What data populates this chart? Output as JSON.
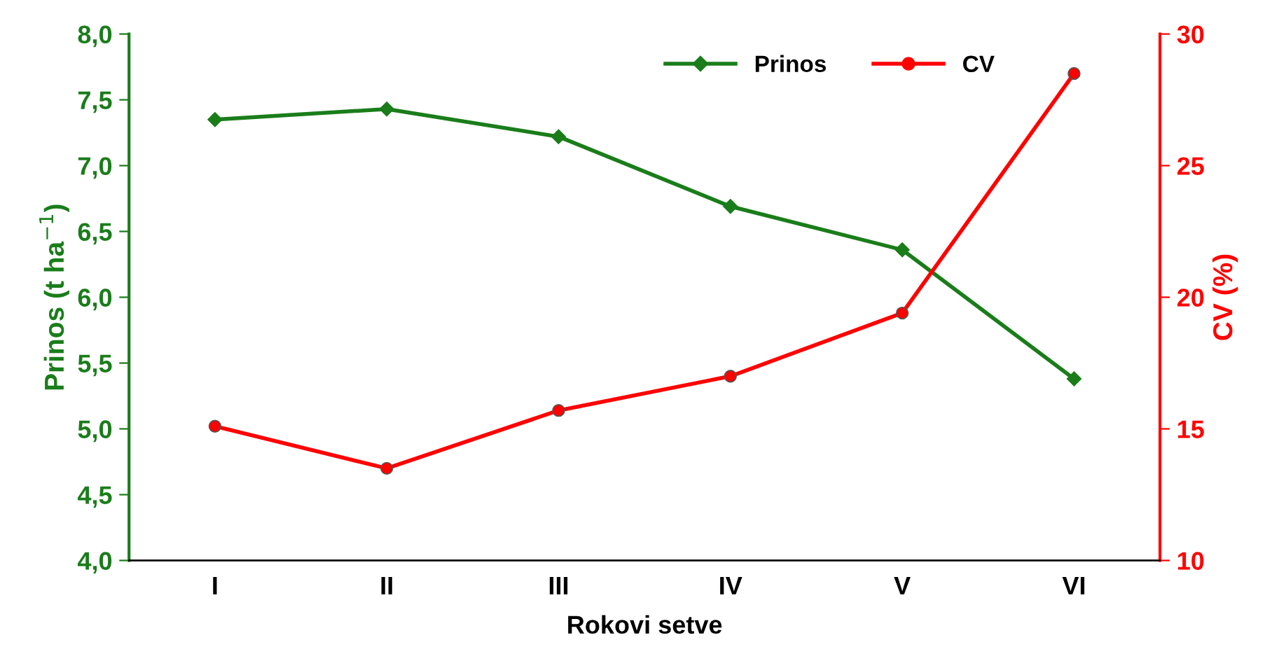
{
  "chart_data": {
    "type": "line",
    "xlabel": "Rokovi setve",
    "ylabel": "Prinos (t ha$^{−1}$)",
    "y2label": "CV (%)",
    "categories": [
      "I",
      "II",
      "III",
      "IV",
      "V",
      "VI"
    ],
    "series": [
      {
        "name": "Prinos",
        "color": "#1a7d1a",
        "marker": "diamond",
        "values": [
          7.35,
          7.43,
          7.22,
          6.69,
          6.36,
          5.38
        ]
      },
      {
        "name": "CV",
        "color": "#ff0000",
        "marker": "circle",
        "axis": "y2",
        "values": [
          15.1,
          13.5,
          15.7,
          17.0,
          19.4,
          28.5
        ]
      }
    ],
    "ylim": [
      4.0,
      8.0
    ],
    "yticks": [
      {
        "value": 4.0,
        "label": "4,0"
      },
      {
        "value": 4.5,
        "label": "4,5"
      },
      {
        "value": 5.0,
        "label": "5,0"
      },
      {
        "value": 5.5,
        "label": "5,5"
      },
      {
        "value": 6.0,
        "label": "6,0"
      },
      {
        "value": 6.5,
        "label": "6,5"
      },
      {
        "value": 7.0,
        "label": "7,0"
      },
      {
        "value": 7.5,
        "label": "7,5"
      },
      {
        "value": 8.0,
        "label": "8,0"
      }
    ],
    "y2lim": [
      10,
      30
    ],
    "y2ticks": [
      10,
      15,
      20,
      25,
      30
    ],
    "legend": "top right",
    "grid": false
  }
}
